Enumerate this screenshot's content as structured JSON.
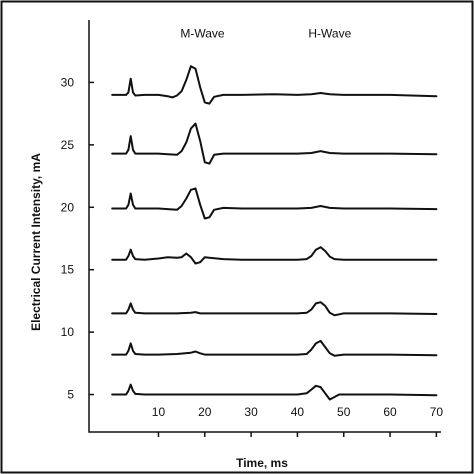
{
  "chart_data": {
    "type": "line",
    "title": "",
    "xlabel": "Time, ms",
    "ylabel": "Electrical Current Intensity, mA",
    "xlim": [
      -5,
      71
    ],
    "ylim": [
      2,
      35
    ],
    "x_ticks": [
      10,
      20,
      30,
      40,
      50,
      60,
      70
    ],
    "y_ticks": [
      5,
      10,
      15,
      20,
      25,
      30
    ],
    "grid": false,
    "annotations": [
      {
        "text": "M-Wave",
        "x": 19.5,
        "y": 33.6
      },
      {
        "text": "H-Wave",
        "x": 47,
        "y": 33.6
      }
    ],
    "series": [
      {
        "baseline": 29.0,
        "x": [
          0,
          3,
          3.5,
          4,
          4.5,
          5,
          7,
          10,
          12,
          13,
          14,
          15,
          16,
          17,
          18,
          19,
          20,
          21,
          22,
          24,
          28,
          35,
          40,
          43,
          45,
          47,
          50,
          60,
          70
        ],
        "values": [
          29.0,
          29.0,
          29.2,
          30.3,
          29.2,
          28.95,
          29.0,
          29.0,
          28.9,
          28.8,
          28.95,
          29.3,
          30.2,
          31.3,
          31.1,
          29.6,
          28.4,
          28.3,
          28.85,
          29.0,
          29.0,
          29.05,
          29.0,
          29.05,
          29.15,
          29.05,
          29.0,
          29.0,
          28.9
        ]
      },
      {
        "baseline": 24.3,
        "x": [
          0,
          3,
          3.5,
          4,
          4.5,
          5,
          7,
          10,
          12,
          14,
          15,
          16,
          17,
          18,
          19,
          20,
          21,
          22,
          24,
          28,
          35,
          40,
          43,
          45,
          47,
          50,
          60,
          70
        ],
        "values": [
          24.3,
          24.3,
          24.6,
          25.7,
          24.6,
          24.3,
          24.3,
          24.3,
          24.25,
          24.2,
          24.5,
          25.2,
          26.3,
          26.7,
          25.3,
          23.6,
          23.5,
          24.2,
          24.3,
          24.3,
          24.3,
          24.3,
          24.35,
          24.5,
          24.35,
          24.3,
          24.3,
          24.25
        ]
      },
      {
        "baseline": 19.9,
        "x": [
          0,
          3,
          3.5,
          4,
          4.5,
          5,
          7,
          10,
          12,
          14,
          15,
          16,
          17,
          18,
          19,
          20,
          21,
          22,
          24,
          28,
          35,
          40,
          43,
          45,
          47,
          50,
          60,
          70
        ],
        "values": [
          19.9,
          19.9,
          20.2,
          21.1,
          20.2,
          19.9,
          19.9,
          19.9,
          19.85,
          19.8,
          20.1,
          20.7,
          21.4,
          21.5,
          20.2,
          19.1,
          19.2,
          19.8,
          19.95,
          19.9,
          19.9,
          19.9,
          19.95,
          20.1,
          19.95,
          19.9,
          19.9,
          19.85
        ]
      },
      {
        "baseline": 15.8,
        "x": [
          0,
          3,
          3.5,
          4,
          4.5,
          5,
          7,
          10,
          12,
          14,
          15,
          16,
          17,
          18,
          19,
          20,
          21,
          24,
          28,
          35,
          40,
          42,
          43,
          44,
          45,
          46,
          47,
          48,
          50,
          60,
          70
        ],
        "values": [
          15.8,
          15.8,
          16.1,
          16.6,
          16.1,
          15.85,
          15.8,
          15.9,
          16.0,
          15.95,
          16.0,
          16.3,
          16.0,
          15.5,
          15.6,
          16.0,
          15.95,
          15.85,
          15.8,
          15.8,
          15.8,
          15.85,
          16.1,
          16.6,
          16.8,
          16.5,
          16.05,
          15.85,
          15.8,
          15.8,
          15.8
        ]
      },
      {
        "baseline": 11.5,
        "x": [
          0,
          3,
          3.5,
          4,
          4.5,
          5,
          7,
          10,
          14,
          17,
          18,
          19,
          20,
          24,
          28,
          35,
          40,
          42,
          43,
          44,
          45,
          46,
          47,
          48,
          50,
          60,
          70
        ],
        "values": [
          11.5,
          11.5,
          11.8,
          12.3,
          11.8,
          11.55,
          11.5,
          11.5,
          11.5,
          11.55,
          11.6,
          11.5,
          11.5,
          11.5,
          11.5,
          11.5,
          11.5,
          11.55,
          11.8,
          12.3,
          12.4,
          12.1,
          11.55,
          11.35,
          11.5,
          11.5,
          11.45
        ]
      },
      {
        "baseline": 8.2,
        "x": [
          0,
          3,
          3.5,
          4,
          4.5,
          5,
          7,
          10,
          14,
          17,
          18,
          19,
          20,
          24,
          28,
          35,
          40,
          42,
          43,
          44,
          45,
          46,
          47,
          48,
          50,
          60,
          70
        ],
        "values": [
          8.2,
          8.2,
          8.5,
          9.1,
          8.5,
          8.25,
          8.2,
          8.2,
          8.25,
          8.35,
          8.45,
          8.3,
          8.2,
          8.2,
          8.2,
          8.2,
          8.2,
          8.25,
          8.6,
          9.1,
          9.3,
          8.8,
          8.3,
          8.1,
          8.2,
          8.2,
          8.15
        ]
      },
      {
        "baseline": 5.0,
        "x": [
          0,
          3,
          3.5,
          4,
          4.5,
          5,
          7,
          10,
          14,
          18,
          20,
          24,
          28,
          35,
          40,
          42,
          43,
          44,
          45,
          46,
          47,
          48,
          49,
          50,
          60,
          70
        ],
        "values": [
          5.0,
          5.0,
          5.3,
          5.8,
          5.3,
          5.05,
          5.0,
          5.0,
          5.0,
          5.0,
          5.0,
          5.0,
          5.0,
          5.0,
          5.0,
          5.1,
          5.4,
          5.7,
          5.6,
          5.1,
          4.6,
          4.8,
          5.0,
          5.0,
          5.0,
          4.95
        ]
      }
    ]
  }
}
